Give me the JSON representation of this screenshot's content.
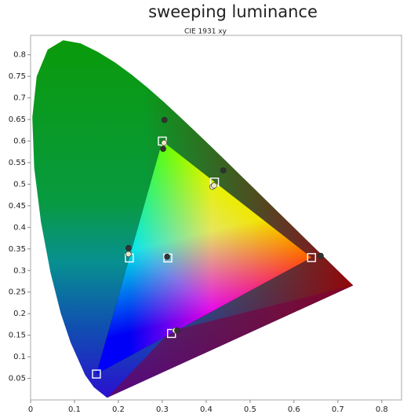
{
  "chart_data": {
    "type": "scatter",
    "title": "sweeping luminance",
    "subtitle": "CIE 1931 xy",
    "xlim": [
      0,
      0.845
    ],
    "ylim": [
      0,
      0.845
    ],
    "xticks": [
      0,
      0.1,
      0.2,
      0.3,
      0.4,
      0.5,
      0.6,
      0.7,
      0.8
    ],
    "yticks": [
      0.05,
      0.1,
      0.15,
      0.2,
      0.25,
      0.3,
      0.35,
      0.4,
      0.45,
      0.5,
      0.55,
      0.6,
      0.65,
      0.7,
      0.75,
      0.8
    ],
    "series": [
      {
        "marker": "square",
        "color": "#ffffff",
        "x": [
          0.64,
          0.3,
          0.15,
          0.3127,
          0.225,
          0.321,
          0.419
        ],
        "values": [
          0.33,
          0.6,
          0.06,
          0.329,
          0.329,
          0.154,
          0.505
        ]
      },
      {
        "marker": "circle",
        "color": "#e8e8c8",
        "x": [
          0.414,
          0.418,
          0.223,
          0.304,
          0.329
        ],
        "values": [
          0.494,
          0.497,
          0.338,
          0.596,
          0.161
        ]
      },
      {
        "marker": "circle",
        "color": "#333333",
        "x": [
          0.305,
          0.439,
          0.661,
          0.334,
          0.223,
          0.302,
          0.311
        ],
        "values": [
          0.649,
          0.532,
          0.334,
          0.161,
          0.352,
          0.582,
          0.332
        ]
      }
    ]
  }
}
